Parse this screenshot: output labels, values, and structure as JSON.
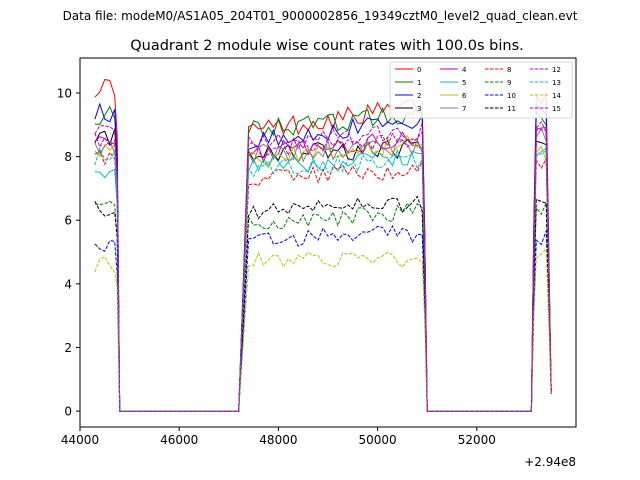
{
  "header": {
    "datafile": "Data file: modeM0/AS1A05_204T01_9000002856_19349cztM0_level2_quad_clean.evt"
  },
  "chart_data": {
    "type": "line",
    "title": "Quadrant 2 module wise count rates with 100.0s bins.",
    "xlabel": "",
    "ylabel": "",
    "x_offset_label": "+2.94e8",
    "xlim": [
      44000,
      54000
    ],
    "ylim": [
      -0.5,
      11.1
    ],
    "x_ticks": [
      44000,
      46000,
      48000,
      50000,
      52000
    ],
    "y_ticks": [
      0,
      2,
      4,
      6,
      8,
      10
    ],
    "grid": false,
    "legend": {
      "placement": "top-right",
      "columns": 4
    },
    "series": [
      {
        "name": "0",
        "color": "#ff0000",
        "dash": "solid",
        "bands": [
          10.2,
          8.8,
          9.6,
          9.8
        ]
      },
      {
        "name": "1",
        "color": "#008000",
        "dash": "solid",
        "bands": [
          9.3,
          8.8,
          9.4,
          9.3
        ]
      },
      {
        "name": "2",
        "color": "#0000ff",
        "dash": "solid",
        "bands": [
          9.4,
          8.5,
          9.2,
          9.5
        ]
      },
      {
        "name": "3",
        "color": "#000000",
        "dash": "solid",
        "bands": [
          8.6,
          8.0,
          8.3,
          8.4
        ]
      },
      {
        "name": "4",
        "color": "#bf00bf",
        "dash": "solid",
        "bands": [
          8.6,
          8.1,
          8.5,
          8.8
        ]
      },
      {
        "name": "5",
        "color": "#00bfbf",
        "dash": "solid",
        "bands": [
          7.6,
          7.8,
          7.9,
          8.0
        ]
      },
      {
        "name": "6",
        "color": "#bfbf00",
        "dash": "solid",
        "bands": [
          8.2,
          7.9,
          8.4,
          8.1
        ]
      },
      {
        "name": "7",
        "color": "#808080",
        "dash": "solid",
        "bands": [
          8.4,
          8.1,
          8.3,
          8.6
        ]
      },
      {
        "name": "8",
        "color": "#ff0000",
        "dash": "dashed",
        "bands": [
          8.0,
          7.3,
          7.6,
          7.9
        ]
      },
      {
        "name": "9",
        "color": "#008000",
        "dash": "dashed",
        "bands": [
          6.4,
          5.9,
          6.3,
          6.4
        ]
      },
      {
        "name": "10",
        "color": "#0000ff",
        "dash": "dashed",
        "bands": [
          5.1,
          5.4,
          5.6,
          5.4
        ]
      },
      {
        "name": "11",
        "color": "#000000",
        "dash": "dashed",
        "bands": [
          6.4,
          6.3,
          6.5,
          6.7
        ]
      },
      {
        "name": "12",
        "color": "#bf00bf",
        "dash": "dashed",
        "bands": [
          8.5,
          8.2,
          8.6,
          8.9
        ]
      },
      {
        "name": "13",
        "color": "#00bfbf",
        "dash": "dashed",
        "bands": [
          8.0,
          7.6,
          7.9,
          8.1
        ]
      },
      {
        "name": "14",
        "color": "#bfbf00",
        "dash": "dashed",
        "bands": [
          4.6,
          4.7,
          4.8,
          4.9
        ]
      },
      {
        "name": "15",
        "color": "#bf00bf",
        "dash": "dashed",
        "bands": [
          8.9,
          8.4,
          8.8,
          9.0
        ]
      }
    ]
  }
}
